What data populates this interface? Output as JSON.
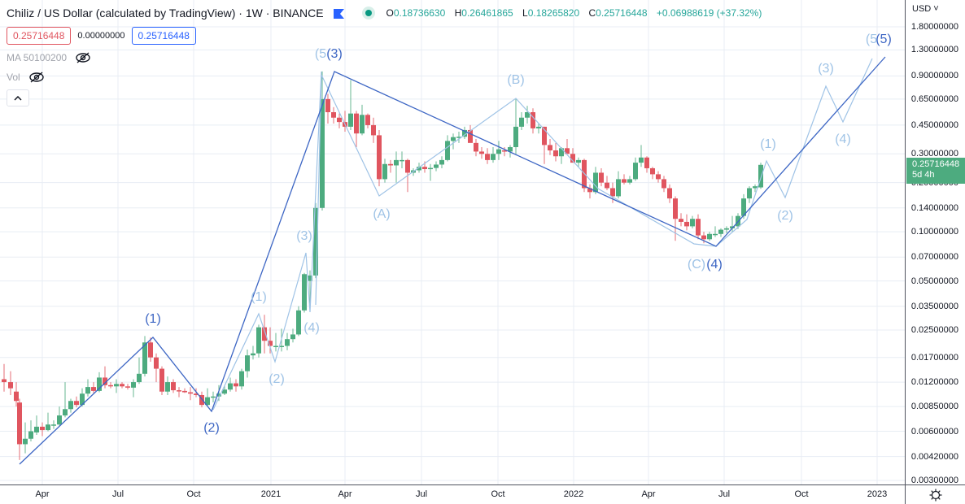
{
  "header": {
    "title": "Chiliz / US Dollar (calculated by TradingView) · 1W · BINANCE",
    "symbol": "Chiliz / US Dollar",
    "source_note": "calculated by TradingView",
    "interval": "1W",
    "exchange": "BINANCE",
    "flag_icon": "flag-icon",
    "status": "market-open-dot",
    "ohlc": {
      "open_key": "O",
      "open": "0.18736630",
      "high_key": "H",
      "high": "0.26461865",
      "low_key": "L",
      "low": "0.18265820",
      "close_key": "C",
      "close": "0.25716448",
      "change": "+0.06988619 (+37.32%)"
    }
  },
  "values_row": {
    "bid": "0.25716448",
    "spread": "0.00000000",
    "ask": "0.25716448"
  },
  "indicators": [
    {
      "label": "MA 50100200",
      "icon": "eye-hidden-icon"
    },
    {
      "label": "Vol",
      "icon": "eye-hidden-icon"
    }
  ],
  "collapse_button": {
    "icon": "chevron-up-icon"
  },
  "price_axis": {
    "currency": "USD ˅",
    "labels": [
      "1.80000000",
      "1.30000000",
      "0.90000000",
      "0.65000000",
      "0.45000000",
      "0.30000000",
      "0.20000000",
      "0.14000000",
      "0.10000000",
      "0.07000000",
      "0.05000000",
      "0.03500000",
      "0.02500000",
      "0.01700000",
      "0.01200000",
      "0.00850000",
      "0.00600000",
      "0.00420000",
      "0.00300000"
    ],
    "last_price": "0.25716448",
    "countdown": "5d 4h"
  },
  "time_axis": {
    "labels": [
      "Apr",
      "Jul",
      "Oct",
      "2021",
      "Apr",
      "Jul",
      "Oct",
      "2022",
      "Apr",
      "Jul",
      "Oct",
      "2023"
    ]
  },
  "settings_icon": "gear-icon",
  "colors": {
    "up": "#4dab7f",
    "down": "#e0555f",
    "wave_primary": "#3d66c4",
    "wave_secondary": "#9fc3e6",
    "grid": "#e8edf4"
  },
  "chart_data": {
    "type": "candlestick",
    "title": "Chiliz / US Dollar · 1W · BINANCE",
    "scale": "logarithmic",
    "ylim": [
      0.003,
      1.8
    ],
    "x_ticks": [
      "Apr 2020",
      "Jul 2020",
      "Oct 2020",
      "2021",
      "Apr 2021",
      "Jul 2021",
      "Oct 2021",
      "2022",
      "Apr 2022",
      "Jul 2022",
      "Oct 2022",
      "2023"
    ],
    "y_ticks": [
      1.8,
      1.3,
      0.9,
      0.65,
      0.45,
      0.3,
      0.2,
      0.14,
      0.1,
      0.07,
      0.05,
      0.035,
      0.025,
      0.017,
      0.012,
      0.0085,
      0.006,
      0.0042,
      0.003
    ],
    "last": {
      "open": 0.1873663,
      "high": 0.26461865,
      "low": 0.1826582,
      "close": 0.25716448,
      "change": 0.06988619,
      "change_pct": 37.32
    },
    "wave_labels_primary": [
      {
        "label": "(1)",
        "approx_date": "Aug 2020",
        "price": 0.023
      },
      {
        "label": "(2)",
        "approx_date": "Nov 2020",
        "price": 0.0082
      },
      {
        "label": "(3)",
        "approx_date": "Mar 2021",
        "price": 0.95
      },
      {
        "label": "(4)",
        "approx_date": "Jun 2022",
        "price": 0.082
      },
      {
        "label": "(5)",
        "approx_date": "Jan 2023",
        "price": 1.2
      }
    ],
    "wave_labels_secondary": [
      {
        "label": "(1)",
        "approx_date": "Dec 2020",
        "price": 0.031
      },
      {
        "label": "(2)",
        "approx_date": "Jan 2021",
        "price": 0.016
      },
      {
        "label": "(3)",
        "approx_date": "Feb 2021",
        "price": 0.075
      },
      {
        "label": "(4)",
        "approx_date": "Feb 2021",
        "price": 0.035
      },
      {
        "label": "(5",
        "approx_date": "Mar 2021",
        "price": 0.95
      },
      {
        "label": "(A)",
        "approx_date": "May 2021",
        "price": 0.16
      },
      {
        "label": "(B)",
        "approx_date": "Oct 2021",
        "price": 0.65
      },
      {
        "label": "(C)",
        "approx_date": "Jun 2022",
        "price": 0.085
      },
      {
        "label": "(1)",
        "approx_date": "Aug 2022",
        "price": 0.26
      },
      {
        "label": "(2)",
        "approx_date": "Sep 2022",
        "price": 0.15
      },
      {
        "label": "(3)",
        "approx_date": "Nov 2022",
        "price": 0.8
      },
      {
        "label": "(4)",
        "approx_date": "Dec 2022",
        "price": 0.48
      },
      {
        "label": "(5",
        "approx_date": "Jan 2023",
        "price": 1.3
      }
    ],
    "candles": [
      {
        "x": 5,
        "o": 0.0125,
        "h": 0.0155,
        "l": 0.0105,
        "c": 0.012
      },
      {
        "x": 13,
        "o": 0.012,
        "h": 0.014,
        "l": 0.01,
        "c": 0.011
      },
      {
        "x": 20,
        "o": 0.0105,
        "h": 0.012,
        "l": 0.0085,
        "c": 0.0092
      },
      {
        "x": 24,
        "o": 0.009,
        "h": 0.0095,
        "l": 0.004,
        "c": 0.005
      },
      {
        "x": 31,
        "o": 0.005,
        "h": 0.0068,
        "l": 0.0044,
        "c": 0.0054
      },
      {
        "x": 38,
        "o": 0.0054,
        "h": 0.007,
        "l": 0.0052,
        "c": 0.006
      },
      {
        "x": 45,
        "o": 0.0059,
        "h": 0.0075,
        "l": 0.0057,
        "c": 0.0064
      },
      {
        "x": 52,
        "o": 0.0064,
        "h": 0.0068,
        "l": 0.0056,
        "c": 0.0061
      },
      {
        "x": 59,
        "o": 0.0061,
        "h": 0.0078,
        "l": 0.006,
        "c": 0.0066
      },
      {
        "x": 66,
        "o": 0.0066,
        "h": 0.007,
        "l": 0.0062,
        "c": 0.0066
      },
      {
        "x": 73,
        "o": 0.0066,
        "h": 0.0085,
        "l": 0.0065,
        "c": 0.0075
      },
      {
        "x": 80,
        "o": 0.0075,
        "h": 0.012,
        "l": 0.0073,
        "c": 0.0082
      },
      {
        "x": 87,
        "o": 0.0082,
        "h": 0.0095,
        "l": 0.0078,
        "c": 0.0092
      },
      {
        "x": 94,
        "o": 0.0092,
        "h": 0.0098,
        "l": 0.0084,
        "c": 0.0087
      },
      {
        "x": 101,
        "o": 0.0087,
        "h": 0.011,
        "l": 0.0085,
        "c": 0.0102
      },
      {
        "x": 108,
        "o": 0.0102,
        "h": 0.0125,
        "l": 0.0098,
        "c": 0.0112
      },
      {
        "x": 115,
        "o": 0.0112,
        "h": 0.012,
        "l": 0.0103,
        "c": 0.0106
      },
      {
        "x": 122,
        "o": 0.0106,
        "h": 0.0138,
        "l": 0.0104,
        "c": 0.0128
      },
      {
        "x": 129,
        "o": 0.0128,
        "h": 0.015,
        "l": 0.011,
        "c": 0.0115
      },
      {
        "x": 136,
        "o": 0.0115,
        "h": 0.012,
        "l": 0.011,
        "c": 0.0113
      },
      {
        "x": 143,
        "o": 0.0113,
        "h": 0.0125,
        "l": 0.0103,
        "c": 0.0117
      },
      {
        "x": 150,
        "o": 0.0117,
        "h": 0.012,
        "l": 0.011,
        "c": 0.0113
      },
      {
        "x": 157,
        "o": 0.0113,
        "h": 0.0117,
        "l": 0.0108,
        "c": 0.0111
      },
      {
        "x": 164,
        "o": 0.0111,
        "h": 0.0125,
        "l": 0.0097,
        "c": 0.012
      },
      {
        "x": 171,
        "o": 0.012,
        "h": 0.017,
        "l": 0.0117,
        "c": 0.0135
      },
      {
        "x": 178,
        "o": 0.0135,
        "h": 0.023,
        "l": 0.013,
        "c": 0.021
      },
      {
        "x": 185,
        "o": 0.021,
        "h": 0.0225,
        "l": 0.016,
        "c": 0.017
      },
      {
        "x": 192,
        "o": 0.017,
        "h": 0.018,
        "l": 0.012,
        "c": 0.0145
      },
      {
        "x": 199,
        "o": 0.0145,
        "h": 0.015,
        "l": 0.01,
        "c": 0.0105
      },
      {
        "x": 206,
        "o": 0.0105,
        "h": 0.013,
        "l": 0.01,
        "c": 0.012
      },
      {
        "x": 213,
        "o": 0.012,
        "h": 0.0125,
        "l": 0.0103,
        "c": 0.0107
      },
      {
        "x": 220,
        "o": 0.0107,
        "h": 0.0112,
        "l": 0.0097,
        "c": 0.0106
      },
      {
        "x": 227,
        "o": 0.0106,
        "h": 0.011,
        "l": 0.0103,
        "c": 0.0104
      },
      {
        "x": 234,
        "o": 0.0104,
        "h": 0.0112,
        "l": 0.0093,
        "c": 0.0102
      },
      {
        "x": 241,
        "o": 0.0102,
        "h": 0.011,
        "l": 0.0097,
        "c": 0.01
      },
      {
        "x": 248,
        "o": 0.01,
        "h": 0.0105,
        "l": 0.0084,
        "c": 0.0087
      },
      {
        "x": 255,
        "o": 0.0087,
        "h": 0.011,
        "l": 0.0085,
        "c": 0.0097
      },
      {
        "x": 262,
        "o": 0.0097,
        "h": 0.0105,
        "l": 0.009,
        "c": 0.0098
      },
      {
        "x": 269,
        "o": 0.0098,
        "h": 0.0115,
        "l": 0.0092,
        "c": 0.0102
      },
      {
        "x": 276,
        "o": 0.0102,
        "h": 0.0115,
        "l": 0.01,
        "c": 0.0108
      },
      {
        "x": 283,
        "o": 0.0108,
        "h": 0.0128,
        "l": 0.0105,
        "c": 0.0118
      },
      {
        "x": 290,
        "o": 0.0118,
        "h": 0.0125,
        "l": 0.0105,
        "c": 0.0113
      },
      {
        "x": 297,
        "o": 0.0113,
        "h": 0.0145,
        "l": 0.0108,
        "c": 0.014
      },
      {
        "x": 304,
        "o": 0.014,
        "h": 0.019,
        "l": 0.0128,
        "c": 0.0175
      },
      {
        "x": 311,
        "o": 0.0175,
        "h": 0.02,
        "l": 0.0165,
        "c": 0.018
      },
      {
        "x": 318,
        "o": 0.018,
        "h": 0.027,
        "l": 0.017,
        "c": 0.026
      },
      {
        "x": 325,
        "o": 0.026,
        "h": 0.031,
        "l": 0.018,
        "c": 0.0215
      },
      {
        "x": 332,
        "o": 0.0215,
        "h": 0.026,
        "l": 0.018,
        "c": 0.02
      },
      {
        "x": 339,
        "o": 0.02,
        "h": 0.024,
        "l": 0.0185,
        "c": 0.02
      },
      {
        "x": 346,
        "o": 0.02,
        "h": 0.0255,
        "l": 0.0185,
        "c": 0.02
      },
      {
        "x": 353,
        "o": 0.02,
        "h": 0.024,
        "l": 0.0188,
        "c": 0.022
      },
      {
        "x": 360,
        "o": 0.022,
        "h": 0.0255,
        "l": 0.021,
        "c": 0.0235
      },
      {
        "x": 367,
        "o": 0.0235,
        "h": 0.035,
        "l": 0.023,
        "c": 0.033
      },
      {
        "x": 374,
        "o": 0.033,
        "h": 0.056,
        "l": 0.032,
        "c": 0.055
      },
      {
        "x": 381,
        "o": 0.05,
        "h": 0.058,
        "l": 0.034,
        "c": 0.054
      },
      {
        "x": 388,
        "o": 0.054,
        "h": 0.15,
        "l": 0.052,
        "c": 0.14
      },
      {
        "x": 396,
        "o": 0.14,
        "h": 0.96,
        "l": 0.135,
        "c": 0.65
      },
      {
        "x": 403,
        "o": 0.65,
        "h": 0.7,
        "l": 0.46,
        "c": 0.54
      },
      {
        "x": 410,
        "o": 0.54,
        "h": 0.58,
        "l": 0.46,
        "c": 0.5
      },
      {
        "x": 417,
        "o": 0.5,
        "h": 0.53,
        "l": 0.43,
        "c": 0.47
      },
      {
        "x": 424,
        "o": 0.47,
        "h": 0.55,
        "l": 0.41,
        "c": 0.44
      },
      {
        "x": 431,
        "o": 0.44,
        "h": 0.85,
        "l": 0.42,
        "c": 0.53
      },
      {
        "x": 438,
        "o": 0.53,
        "h": 0.55,
        "l": 0.33,
        "c": 0.4
      },
      {
        "x": 445,
        "o": 0.4,
        "h": 0.6,
        "l": 0.39,
        "c": 0.52
      },
      {
        "x": 452,
        "o": 0.52,
        "h": 0.53,
        "l": 0.43,
        "c": 0.45
      },
      {
        "x": 459,
        "o": 0.45,
        "h": 0.5,
        "l": 0.35,
        "c": 0.39
      },
      {
        "x": 466,
        "o": 0.39,
        "h": 0.42,
        "l": 0.19,
        "c": 0.21
      },
      {
        "x": 473,
        "o": 0.21,
        "h": 0.28,
        "l": 0.2,
        "c": 0.26
      },
      {
        "x": 480,
        "o": 0.26,
        "h": 0.275,
        "l": 0.23,
        "c": 0.255
      },
      {
        "x": 487,
        "o": 0.255,
        "h": 0.31,
        "l": 0.2,
        "c": 0.275
      },
      {
        "x": 494,
        "o": 0.275,
        "h": 0.31,
        "l": 0.245,
        "c": 0.275
      },
      {
        "x": 501,
        "o": 0.275,
        "h": 0.28,
        "l": 0.175,
        "c": 0.23
      },
      {
        "x": 508,
        "o": 0.23,
        "h": 0.245,
        "l": 0.22,
        "c": 0.238
      },
      {
        "x": 515,
        "o": 0.238,
        "h": 0.265,
        "l": 0.23,
        "c": 0.25
      },
      {
        "x": 522,
        "o": 0.25,
        "h": 0.27,
        "l": 0.23,
        "c": 0.242
      },
      {
        "x": 529,
        "o": 0.242,
        "h": 0.26,
        "l": 0.205,
        "c": 0.246
      },
      {
        "x": 536,
        "o": 0.246,
        "h": 0.27,
        "l": 0.235,
        "c": 0.258
      },
      {
        "x": 543,
        "o": 0.258,
        "h": 0.29,
        "l": 0.245,
        "c": 0.275
      },
      {
        "x": 550,
        "o": 0.275,
        "h": 0.39,
        "l": 0.27,
        "c": 0.36
      },
      {
        "x": 557,
        "o": 0.36,
        "h": 0.4,
        "l": 0.32,
        "c": 0.38
      },
      {
        "x": 564,
        "o": 0.38,
        "h": 0.41,
        "l": 0.35,
        "c": 0.382
      },
      {
        "x": 571,
        "o": 0.382,
        "h": 0.44,
        "l": 0.37,
        "c": 0.42
      },
      {
        "x": 578,
        "o": 0.42,
        "h": 0.45,
        "l": 0.36,
        "c": 0.35
      },
      {
        "x": 585,
        "o": 0.35,
        "h": 0.37,
        "l": 0.29,
        "c": 0.31
      },
      {
        "x": 592,
        "o": 0.31,
        "h": 0.33,
        "l": 0.28,
        "c": 0.3
      },
      {
        "x": 599,
        "o": 0.3,
        "h": 0.325,
        "l": 0.26,
        "c": 0.275
      },
      {
        "x": 606,
        "o": 0.275,
        "h": 0.33,
        "l": 0.265,
        "c": 0.3
      },
      {
        "x": 613,
        "o": 0.3,
        "h": 0.36,
        "l": 0.275,
        "c": 0.32
      },
      {
        "x": 620,
        "o": 0.315,
        "h": 0.33,
        "l": 0.29,
        "c": 0.31
      },
      {
        "x": 627,
        "o": 0.31,
        "h": 0.34,
        "l": 0.285,
        "c": 0.33
      },
      {
        "x": 634,
        "o": 0.33,
        "h": 0.65,
        "l": 0.3,
        "c": 0.44
      },
      {
        "x": 641,
        "o": 0.44,
        "h": 0.54,
        "l": 0.42,
        "c": 0.5
      },
      {
        "x": 648,
        "o": 0.5,
        "h": 0.59,
        "l": 0.46,
        "c": 0.54
      },
      {
        "x": 655,
        "o": 0.54,
        "h": 0.57,
        "l": 0.4,
        "c": 0.43
      },
      {
        "x": 662,
        "o": 0.43,
        "h": 0.46,
        "l": 0.4,
        "c": 0.44
      },
      {
        "x": 669,
        "o": 0.44,
        "h": 0.44,
        "l": 0.26,
        "c": 0.34
      },
      {
        "x": 676,
        "o": 0.34,
        "h": 0.37,
        "l": 0.295,
        "c": 0.315
      },
      {
        "x": 683,
        "o": 0.315,
        "h": 0.35,
        "l": 0.27,
        "c": 0.29
      },
      {
        "x": 690,
        "o": 0.29,
        "h": 0.33,
        "l": 0.26,
        "c": 0.325
      },
      {
        "x": 697,
        "o": 0.325,
        "h": 0.37,
        "l": 0.305,
        "c": 0.3
      },
      {
        "x": 704,
        "o": 0.3,
        "h": 0.325,
        "l": 0.28,
        "c": 0.265
      },
      {
        "x": 711,
        "o": 0.265,
        "h": 0.285,
        "l": 0.25,
        "c": 0.275
      },
      {
        "x": 718,
        "o": 0.275,
        "h": 0.28,
        "l": 0.175,
        "c": 0.185
      },
      {
        "x": 725,
        "o": 0.185,
        "h": 0.195,
        "l": 0.16,
        "c": 0.175
      },
      {
        "x": 732,
        "o": 0.175,
        "h": 0.25,
        "l": 0.17,
        "c": 0.23
      },
      {
        "x": 739,
        "o": 0.23,
        "h": 0.245,
        "l": 0.19,
        "c": 0.2
      },
      {
        "x": 746,
        "o": 0.2,
        "h": 0.22,
        "l": 0.18,
        "c": 0.185
      },
      {
        "x": 753,
        "o": 0.185,
        "h": 0.2,
        "l": 0.15,
        "c": 0.165
      },
      {
        "x": 760,
        "o": 0.165,
        "h": 0.235,
        "l": 0.16,
        "c": 0.21
      },
      {
        "x": 767,
        "o": 0.21,
        "h": 0.225,
        "l": 0.195,
        "c": 0.2
      },
      {
        "x": 774,
        "o": 0.2,
        "h": 0.22,
        "l": 0.195,
        "c": 0.21
      },
      {
        "x": 781,
        "o": 0.21,
        "h": 0.285,
        "l": 0.205,
        "c": 0.265
      },
      {
        "x": 788,
        "o": 0.265,
        "h": 0.34,
        "l": 0.25,
        "c": 0.285
      },
      {
        "x": 795,
        "o": 0.285,
        "h": 0.29,
        "l": 0.23,
        "c": 0.245
      },
      {
        "x": 802,
        "o": 0.245,
        "h": 0.25,
        "l": 0.21,
        "c": 0.225
      },
      {
        "x": 809,
        "o": 0.225,
        "h": 0.235,
        "l": 0.2,
        "c": 0.21
      },
      {
        "x": 816,
        "o": 0.21,
        "h": 0.22,
        "l": 0.175,
        "c": 0.185
      },
      {
        "x": 823,
        "o": 0.185,
        "h": 0.195,
        "l": 0.15,
        "c": 0.16
      },
      {
        "x": 830,
        "o": 0.16,
        "h": 0.165,
        "l": 0.088,
        "c": 0.12
      },
      {
        "x": 837,
        "o": 0.12,
        "h": 0.13,
        "l": 0.108,
        "c": 0.115
      },
      {
        "x": 844,
        "o": 0.115,
        "h": 0.128,
        "l": 0.102,
        "c": 0.108
      },
      {
        "x": 851,
        "o": 0.108,
        "h": 0.125,
        "l": 0.105,
        "c": 0.12
      },
      {
        "x": 858,
        "o": 0.12,
        "h": 0.128,
        "l": 0.09,
        "c": 0.095
      },
      {
        "x": 865,
        "o": 0.095,
        "h": 0.1,
        "l": 0.085,
        "c": 0.09
      },
      {
        "x": 872,
        "o": 0.09,
        "h": 0.1,
        "l": 0.088,
        "c": 0.097
      },
      {
        "x": 879,
        "o": 0.097,
        "h": 0.108,
        "l": 0.093,
        "c": 0.097
      },
      {
        "x": 886,
        "o": 0.097,
        "h": 0.105,
        "l": 0.093,
        "c": 0.103
      },
      {
        "x": 893,
        "o": 0.103,
        "h": 0.108,
        "l": 0.098,
        "c": 0.105
      },
      {
        "x": 900,
        "o": 0.105,
        "h": 0.125,
        "l": 0.1,
        "c": 0.108
      },
      {
        "x": 907,
        "o": 0.108,
        "h": 0.13,
        "l": 0.104,
        "c": 0.125
      },
      {
        "x": 914,
        "o": 0.125,
        "h": 0.17,
        "l": 0.12,
        "c": 0.16
      },
      {
        "x": 921,
        "o": 0.16,
        "h": 0.19,
        "l": 0.15,
        "c": 0.185
      },
      {
        "x": 928,
        "o": 0.185,
        "h": 0.195,
        "l": 0.175,
        "c": 0.19
      },
      {
        "x": 935,
        "o": 0.187,
        "h": 0.265,
        "l": 0.183,
        "c": 0.257
      }
    ]
  }
}
